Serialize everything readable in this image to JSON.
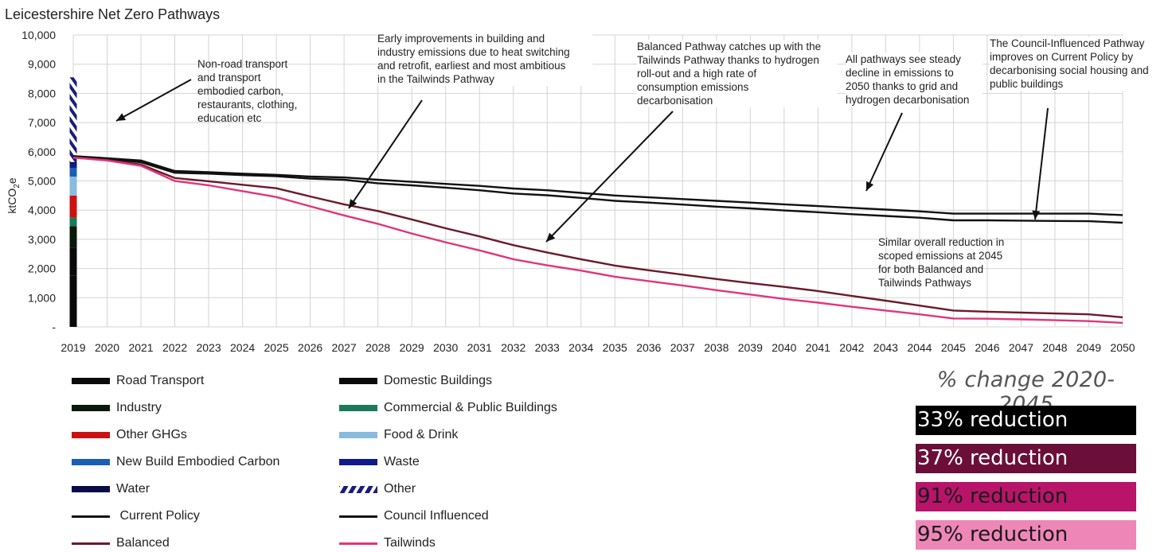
{
  "title": "Leicestershire Net Zero Pathways",
  "chart_data": {
    "type": "line",
    "title": "Leicestershire Net Zero Pathways",
    "ylabel": "ktCO2e",
    "ylabel_main": "ktCO",
    "ylabel_sub": "2",
    "ylabel_tail": "e",
    "ylim": [
      0,
      10000
    ],
    "y_ticks": [
      "-",
      "1,000",
      "2,000",
      "3,000",
      "4,000",
      "5,000",
      "6,000",
      "7,000",
      "8,000",
      "9,000",
      "10,000"
    ],
    "x": [
      2019,
      2020,
      2021,
      2022,
      2023,
      2024,
      2025,
      2026,
      2027,
      2028,
      2029,
      2030,
      2031,
      2032,
      2033,
      2034,
      2035,
      2036,
      2037,
      2038,
      2039,
      2040,
      2041,
      2042,
      2043,
      2044,
      2045,
      2046,
      2047,
      2048,
      2049,
      2050
    ],
    "grid": true,
    "series": [
      {
        "name": "Current Policy",
        "color": "#111111",
        "values": [
          5850,
          5780,
          5700,
          5340,
          5300,
          5250,
          5210,
          5150,
          5120,
          5040,
          4970,
          4900,
          4830,
          4740,
          4680,
          4590,
          4500,
          4440,
          4380,
          4320,
          4260,
          4200,
          4140,
          4080,
          4020,
          3960,
          3880,
          3880,
          3880,
          3880,
          3880,
          3830
        ]
      },
      {
        "name": "Council Influenced",
        "color": "#111111",
        "values": [
          5850,
          5760,
          5640,
          5280,
          5250,
          5200,
          5160,
          5080,
          5040,
          4920,
          4850,
          4770,
          4680,
          4570,
          4510,
          4420,
          4320,
          4260,
          4190,
          4120,
          4060,
          3990,
          3930,
          3860,
          3800,
          3740,
          3650,
          3650,
          3640,
          3630,
          3620,
          3570
        ]
      },
      {
        "name": "Balanced",
        "color": "#6b1a2a",
        "values": [
          5800,
          5720,
          5560,
          5100,
          4990,
          4870,
          4750,
          4470,
          4200,
          3970,
          3680,
          3380,
          3100,
          2800,
          2550,
          2320,
          2100,
          1940,
          1790,
          1640,
          1500,
          1370,
          1230,
          1060,
          900,
          730,
          560,
          520,
          490,
          460,
          430,
          330
        ]
      },
      {
        "name": "Tailwinds",
        "color": "#e0367a",
        "values": [
          5800,
          5700,
          5520,
          5000,
          4850,
          4650,
          4450,
          4130,
          3820,
          3530,
          3200,
          2900,
          2620,
          2320,
          2110,
          1930,
          1720,
          1570,
          1420,
          1260,
          1110,
          960,
          830,
          690,
          560,
          430,
          290,
          280,
          260,
          230,
          200,
          140
        ]
      }
    ],
    "stack_2019": [
      {
        "name": "Road Transport",
        "value": 1750,
        "color": "#0a0a0a"
      },
      {
        "name": "Domestic Buildings",
        "value": 950,
        "color": "#0a0a0a"
      },
      {
        "name": "Industry",
        "value": 750,
        "color": "#0a1a0a"
      },
      {
        "name": "Commercial & Public Buildings",
        "value": 300,
        "color": "#1a7a5a"
      },
      {
        "name": "Other GHGs",
        "value": 750,
        "color": "#cc1111"
      },
      {
        "name": "Food & Drink",
        "value": 650,
        "color": "#88bbdd"
      },
      {
        "name": "New Build Embodied Carbon",
        "value": 300,
        "color": "#1a5fb4"
      },
      {
        "name": "Waste",
        "value": 150,
        "color": "#101a8c"
      },
      {
        "name": "Water",
        "value": 50,
        "color": "#0b0b4a"
      },
      {
        "name": "Other",
        "value": 2900,
        "color": "#1c1c7a",
        "hatched": true
      }
    ]
  },
  "annotations": [
    {
      "text": [
        "Non-road transport",
        "and transport",
        "embodied carbon,",
        "restaurants, clothing,",
        "education etc"
      ]
    },
    {
      "text": [
        "Early improvements in building and",
        "industry emissions due to heat switching",
        "and retrofit, earliest and most ambitious",
        "in the Tailwinds Pathway"
      ]
    },
    {
      "text": [
        "Balanced Pathway catches up with the",
        "Tailwinds Pathway thanks to hydrogen",
        "roll-out and a high rate of",
        "consumption emissions",
        "decarbonisation"
      ]
    },
    {
      "text": [
        "All pathways see steady",
        "decline in emissions to",
        "2050 thanks to grid and",
        "hydrogen decarbonisation"
      ]
    },
    {
      "text": [
        "The Council-Influenced Pathway",
        "improves on Current Policy by",
        "decarbonising social housing and",
        "public buildings"
      ]
    },
    {
      "text": [
        "Similar overall reduction in",
        "scoped emissions at 2045",
        "for both Balanced and",
        "Tailwinds Pathways"
      ]
    }
  ],
  "legend": {
    "left": [
      {
        "label": "Road Transport",
        "color": "#0a0a0a",
        "kind": "bar"
      },
      {
        "label": "Industry",
        "color": "#0a1a0a",
        "kind": "bar"
      },
      {
        "label": "Other GHGs",
        "color": "#cc1111",
        "kind": "bar"
      },
      {
        "label": "New Build Embodied Carbon",
        "color": "#1a5fb4",
        "kind": "bar"
      },
      {
        "label": "Water",
        "color": "#0b0b4a",
        "kind": "bar"
      },
      {
        "label": " Current Policy",
        "color": "#111111",
        "kind": "line"
      },
      {
        "label": "Balanced",
        "color": "#6b1a2a",
        "kind": "line"
      }
    ],
    "right": [
      {
        "label": "Domestic Buildings",
        "color": "#0a0a0a",
        "kind": "bar"
      },
      {
        "label": "Commercial & Public Buildings",
        "color": "#1a7a5a",
        "kind": "bar"
      },
      {
        "label": "Food & Drink",
        "color": "#88bbdd",
        "kind": "bar"
      },
      {
        "label": "Waste",
        "color": "#101a8c",
        "kind": "bar"
      },
      {
        "label": "Other",
        "color": "#1c1c7a",
        "kind": "hatch"
      },
      {
        "label": "Council Influenced",
        "color": "#111111",
        "kind": "line"
      },
      {
        "label": "Tailwinds",
        "color": "#e0367a",
        "kind": "line"
      }
    ]
  },
  "pct_change": {
    "title": "% change 2020-2045",
    "items": [
      {
        "label": "33% reduction",
        "bg": "#000000",
        "fg": "#ffffff"
      },
      {
        "label": "37% reduction",
        "bg": "#6b0f3a",
        "fg": "#ffffff"
      },
      {
        "label": "91% reduction",
        "bg": "#b8146a",
        "fg": "#1a1a1a"
      },
      {
        "label": "95% reduction",
        "bg": "#ee86b8",
        "fg": "#1a1a1a"
      }
    ]
  }
}
